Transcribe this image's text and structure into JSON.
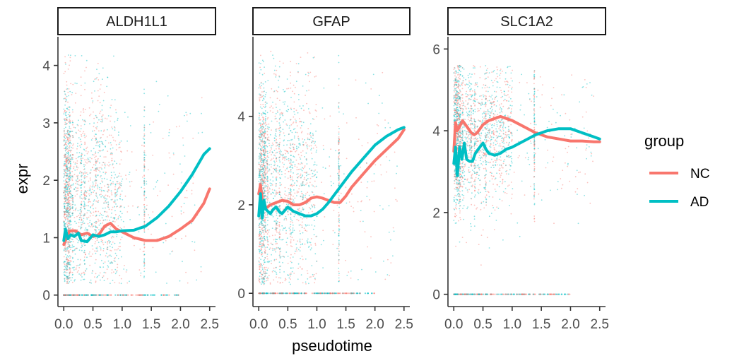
{
  "chart_data": {
    "type": "scatter",
    "xlabel": "pseudotime",
    "ylabel": "expr",
    "x_ticks": [
      0.0,
      0.5,
      1.0,
      1.5,
      2.0,
      2.5
    ],
    "x_tick_labels": [
      "0.0",
      "0.5",
      "1.0",
      "1.5",
      "2.0",
      "2.5"
    ],
    "xlim": [
      -0.1,
      2.6
    ],
    "legend": {
      "title": "group",
      "position": "right",
      "items": [
        {
          "label": "NC",
          "color": "#F8766D"
        },
        {
          "label": "AD",
          "color": "#00BFC4"
        }
      ]
    },
    "facets": [
      {
        "title": "ALDH1L1",
        "ylim": [
          -0.2,
          4.5
        ],
        "y_ticks": [
          0,
          1,
          2,
          3,
          4
        ],
        "y_tick_labels": [
          "0",
          "1",
          "2",
          "3",
          "4"
        ],
        "points": {
          "center": 1.8,
          "spread": 0.9,
          "max": 4.2
        },
        "series": [
          {
            "name": "NC",
            "color": "#F8766D",
            "x": [
              0.0,
              0.05,
              0.1,
              0.2,
              0.3,
              0.4,
              0.5,
              0.6,
              0.7,
              0.8,
              0.9,
              1.0,
              1.2,
              1.4,
              1.6,
              1.8,
              2.0,
              2.2,
              2.4,
              2.5
            ],
            "y": [
              0.88,
              1.0,
              1.12,
              1.12,
              1.05,
              1.08,
              1.02,
              1.05,
              1.2,
              1.25,
              1.15,
              1.1,
              1.0,
              0.95,
              0.95,
              1.02,
              1.15,
              1.3,
              1.6,
              1.85
            ]
          },
          {
            "name": "AD",
            "color": "#00BFC4",
            "x": [
              0.0,
              0.03,
              0.07,
              0.12,
              0.18,
              0.25,
              0.3,
              0.4,
              0.5,
              0.6,
              0.7,
              0.8,
              0.9,
              1.0,
              1.2,
              1.4,
              1.6,
              1.8,
              2.0,
              2.2,
              2.4,
              2.5
            ],
            "y": [
              0.95,
              1.15,
              0.98,
              1.05,
              1.02,
              1.08,
              0.95,
              0.93,
              1.05,
              1.02,
              1.05,
              1.1,
              1.1,
              1.12,
              1.13,
              1.2,
              1.35,
              1.55,
              1.8,
              2.1,
              2.45,
              2.55
            ]
          }
        ]
      },
      {
        "title": "GFAP",
        "ylim": [
          -0.3,
          5.8
        ],
        "y_ticks": [
          0,
          2,
          4
        ],
        "y_tick_labels": [
          "0",
          "2",
          "4"
        ],
        "points": {
          "center": 2.4,
          "spread": 1.2,
          "max": 5.5
        },
        "series": [
          {
            "name": "NC",
            "color": "#F8766D",
            "x": [
              0.0,
              0.03,
              0.06,
              0.1,
              0.15,
              0.2,
              0.3,
              0.4,
              0.5,
              0.6,
              0.7,
              0.8,
              0.9,
              1.0,
              1.1,
              1.2,
              1.3,
              1.4,
              1.5,
              1.6,
              1.8,
              2.0,
              2.2,
              2.4,
              2.5
            ],
            "y": [
              2.25,
              2.45,
              2.1,
              1.95,
              1.95,
              2.0,
              2.05,
              2.1,
              2.08,
              2.0,
              2.0,
              2.05,
              2.15,
              2.18,
              2.15,
              2.1,
              2.05,
              2.05,
              2.2,
              2.4,
              2.7,
              3.0,
              3.25,
              3.5,
              3.7
            ]
          },
          {
            "name": "AD",
            "color": "#00BFC4",
            "x": [
              0.0,
              0.03,
              0.06,
              0.09,
              0.12,
              0.16,
              0.2,
              0.25,
              0.3,
              0.35,
              0.4,
              0.5,
              0.6,
              0.7,
              0.8,
              0.9,
              1.0,
              1.1,
              1.2,
              1.4,
              1.6,
              1.8,
              2.0,
              2.2,
              2.4,
              2.5
            ],
            "y": [
              1.75,
              2.25,
              1.7,
              2.1,
              1.9,
              1.85,
              1.8,
              1.9,
              1.95,
              1.85,
              1.8,
              1.95,
              1.85,
              1.8,
              1.75,
              1.75,
              1.8,
              1.9,
              2.05,
              2.4,
              2.75,
              3.05,
              3.35,
              3.55,
              3.7,
              3.75
            ]
          }
        ]
      },
      {
        "title": "SLC1A2",
        "ylim": [
          -0.3,
          6.3
        ],
        "y_ticks": [
          0,
          2,
          4,
          6
        ],
        "y_tick_labels": [
          "0",
          "2",
          "4",
          "6"
        ],
        "points": {
          "center": 3.9,
          "spread": 0.9,
          "max": 5.6
        },
        "series": [
          {
            "name": "NC",
            "color": "#F8766D",
            "x": [
              0.0,
              0.03,
              0.06,
              0.1,
              0.15,
              0.2,
              0.25,
              0.3,
              0.35,
              0.4,
              0.5,
              0.6,
              0.7,
              0.8,
              0.9,
              1.0,
              1.2,
              1.4,
              1.6,
              1.8,
              2.0,
              2.2,
              2.4,
              2.5
            ],
            "y": [
              3.5,
              4.2,
              4.0,
              4.1,
              4.25,
              4.15,
              4.05,
              3.95,
              3.9,
              3.95,
              4.15,
              4.25,
              4.3,
              4.35,
              4.3,
              4.25,
              4.1,
              3.95,
              3.85,
              3.8,
              3.75,
              3.75,
              3.73,
              3.73
            ]
          },
          {
            "name": "AD",
            "color": "#00BFC4",
            "x": [
              0.0,
              0.03,
              0.06,
              0.1,
              0.14,
              0.18,
              0.22,
              0.27,
              0.32,
              0.37,
              0.42,
              0.5,
              0.55,
              0.6,
              0.7,
              0.8,
              0.9,
              1.0,
              1.2,
              1.4,
              1.6,
              1.8,
              2.0,
              2.2,
              2.4,
              2.5
            ],
            "y": [
              3.2,
              3.6,
              2.9,
              3.6,
              3.3,
              3.7,
              3.3,
              3.25,
              3.25,
              3.45,
              3.55,
              3.7,
              3.55,
              3.45,
              3.4,
              3.45,
              3.55,
              3.6,
              3.75,
              3.9,
              4.0,
              4.05,
              4.05,
              3.95,
              3.85,
              3.8
            ]
          }
        ]
      }
    ]
  }
}
